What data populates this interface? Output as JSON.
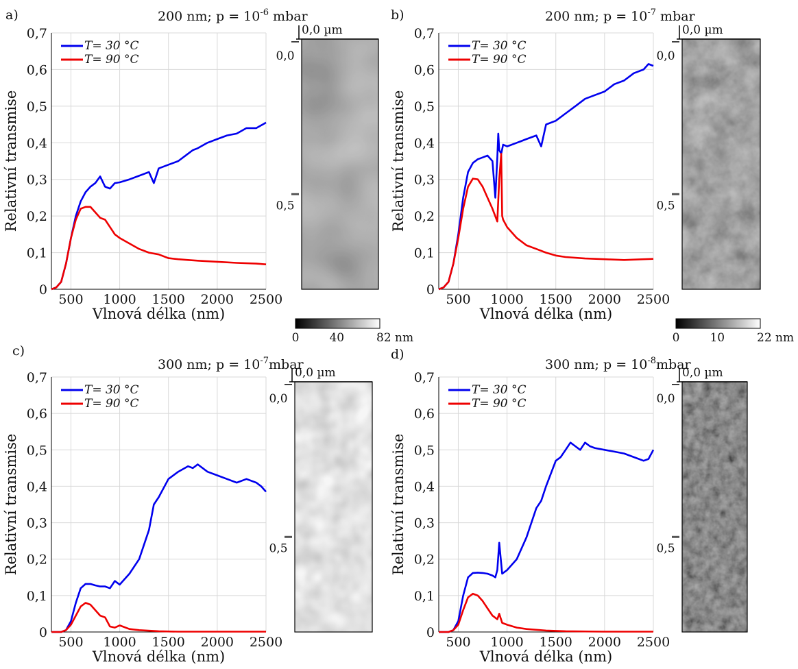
{
  "figure": {
    "xlabel": "Vlnová délka (nm)",
    "ylabel": "Relativní transmise",
    "x_ticks": [
      "500",
      "1000",
      "1500",
      "2000",
      "2500"
    ],
    "y_ticks": [
      "0",
      "0,1",
      "0,2",
      "0,3",
      "0,4",
      "0,5",
      "0,6",
      "0,7"
    ],
    "legend": [
      "T= 30 °C",
      "T= 90 °C"
    ],
    "colors": {
      "blue": "#0000ee",
      "red": "#ee0000",
      "grid": "#d8d8d8"
    },
    "afm_top_label": "0,0 µm",
    "afm_scale_labels": [
      "0,0",
      "0,5"
    ]
  },
  "panels": [
    {
      "letter": "a)",
      "title": "200 nm; p = 10^-6 mbar",
      "colorbar": {
        "ticks": [
          "0",
          "40",
          "82 nm"
        ]
      }
    },
    {
      "letter": "b)",
      "title": "200 nm; p = 10^-7 mbar",
      "colorbar": {
        "ticks": [
          "0",
          "10",
          "22 nm"
        ]
      }
    },
    {
      "letter": "c)",
      "title": "300 nm; p = 10^-7mbar"
    },
    {
      "letter": "d)",
      "title": "300 nm; p = 10^-8mbar"
    }
  ],
  "chart_data": [
    {
      "type": "line",
      "panel": "a",
      "title": "200 nm; p = 10-6 mbar",
      "xlabel": "Vlnová délka (nm)",
      "ylabel": "Relativní transmise",
      "xlim": [
        300,
        2500
      ],
      "ylim": [
        0,
        0.7
      ],
      "grid": true,
      "legend_position": "top-left",
      "series": [
        {
          "name": "T= 30 °C",
          "color": "#0000ee",
          "x": [
            300,
            350,
            400,
            450,
            500,
            550,
            600,
            650,
            700,
            750,
            800,
            850,
            900,
            950,
            1000,
            1100,
            1200,
            1300,
            1350,
            1400,
            1500,
            1600,
            1700,
            1750,
            1800,
            1900,
            2000,
            2100,
            2200,
            2300,
            2400,
            2500
          ],
          "y": [
            0.0,
            0.005,
            0.02,
            0.07,
            0.14,
            0.2,
            0.24,
            0.265,
            0.28,
            0.29,
            0.308,
            0.28,
            0.275,
            0.29,
            0.292,
            0.3,
            0.31,
            0.32,
            0.29,
            0.33,
            0.34,
            0.35,
            0.37,
            0.38,
            0.385,
            0.4,
            0.41,
            0.42,
            0.425,
            0.44,
            0.44,
            0.455
          ]
        },
        {
          "name": "T= 90 °C",
          "color": "#ee0000",
          "x": [
            300,
            350,
            400,
            450,
            500,
            550,
            600,
            650,
            700,
            750,
            800,
            850,
            900,
            950,
            1000,
            1100,
            1200,
            1300,
            1400,
            1500,
            1600,
            1700,
            1800,
            2000,
            2200,
            2400,
            2500
          ],
          "y": [
            0.0,
            0.005,
            0.02,
            0.07,
            0.14,
            0.19,
            0.22,
            0.225,
            0.225,
            0.21,
            0.195,
            0.19,
            0.17,
            0.15,
            0.14,
            0.125,
            0.11,
            0.1,
            0.095,
            0.085,
            0.082,
            0.08,
            0.078,
            0.075,
            0.072,
            0.07,
            0.068
          ]
        }
      ]
    },
    {
      "type": "line",
      "panel": "b",
      "title": "200 nm; p = 10-7 mbar",
      "xlabel": "Vlnová délka (nm)",
      "ylabel": "Relativní transmise",
      "xlim": [
        300,
        2500
      ],
      "ylim": [
        0,
        0.7
      ],
      "grid": true,
      "legend_position": "top-left",
      "series": [
        {
          "name": "T= 30 °C",
          "color": "#0000ee",
          "x": [
            300,
            350,
            400,
            450,
            500,
            550,
            600,
            650,
            700,
            750,
            800,
            850,
            880,
            900,
            910,
            920,
            940,
            960,
            1000,
            1100,
            1200,
            1300,
            1350,
            1400,
            1500,
            1600,
            1700,
            1800,
            1900,
            2000,
            2100,
            2200,
            2300,
            2400,
            2450,
            2500
          ],
          "y": [
            0.0,
            0.005,
            0.02,
            0.07,
            0.15,
            0.25,
            0.32,
            0.345,
            0.355,
            0.36,
            0.365,
            0.35,
            0.25,
            0.36,
            0.425,
            0.38,
            0.37,
            0.395,
            0.39,
            0.4,
            0.41,
            0.42,
            0.39,
            0.45,
            0.46,
            0.48,
            0.5,
            0.52,
            0.53,
            0.54,
            0.56,
            0.57,
            0.59,
            0.6,
            0.615,
            0.61
          ]
        },
        {
          "name": "T= 90 °C",
          "color": "#ee0000",
          "x": [
            300,
            350,
            400,
            450,
            500,
            550,
            600,
            650,
            700,
            750,
            800,
            850,
            900,
            920,
            940,
            950,
            960,
            1000,
            1100,
            1200,
            1300,
            1400,
            1500,
            1600,
            1800,
            2000,
            2200,
            2400,
            2500
          ],
          "y": [
            0.0,
            0.005,
            0.02,
            0.07,
            0.14,
            0.22,
            0.28,
            0.302,
            0.3,
            0.28,
            0.25,
            0.22,
            0.185,
            0.3,
            0.37,
            0.2,
            0.19,
            0.17,
            0.14,
            0.12,
            0.11,
            0.1,
            0.092,
            0.088,
            0.084,
            0.082,
            0.08,
            0.082,
            0.083
          ]
        }
      ]
    },
    {
      "type": "line",
      "panel": "c",
      "title": "300 nm; p = 10-7mbar",
      "xlabel": "Vlnová délka (nm)",
      "ylabel": "Relativní transmise",
      "xlim": [
        300,
        2500
      ],
      "ylim": [
        0,
        0.7
      ],
      "grid": true,
      "legend_position": "top-left",
      "series": [
        {
          "name": "T= 30 °C",
          "color": "#0000ee",
          "x": [
            300,
            400,
            450,
            500,
            550,
            600,
            650,
            700,
            750,
            800,
            850,
            900,
            950,
            1000,
            1100,
            1200,
            1300,
            1350,
            1400,
            1500,
            1600,
            1700,
            1750,
            1800,
            1900,
            2000,
            2100,
            2200,
            2300,
            2400,
            2450,
            2500
          ],
          "y": [
            0.0,
            0.0,
            0.005,
            0.03,
            0.08,
            0.12,
            0.132,
            0.132,
            0.128,
            0.125,
            0.125,
            0.12,
            0.14,
            0.13,
            0.16,
            0.2,
            0.28,
            0.35,
            0.37,
            0.42,
            0.44,
            0.455,
            0.45,
            0.46,
            0.44,
            0.43,
            0.42,
            0.41,
            0.42,
            0.41,
            0.4,
            0.385
          ]
        },
        {
          "name": "T= 90 °C",
          "color": "#ee0000",
          "x": [
            300,
            400,
            450,
            500,
            550,
            600,
            650,
            700,
            750,
            800,
            850,
            900,
            950,
            1000,
            1100,
            1200,
            1400,
            1600,
            2000,
            2500
          ],
          "y": [
            0.0,
            0.0,
            0.005,
            0.02,
            0.045,
            0.07,
            0.08,
            0.075,
            0.06,
            0.045,
            0.04,
            0.015,
            0.012,
            0.018,
            0.008,
            0.005,
            0.002,
            0.001,
            0.001,
            0.001
          ]
        }
      ]
    },
    {
      "type": "line",
      "panel": "d",
      "title": "300 nm; p = 10-8mbar",
      "xlabel": "Vlnová délka (nm)",
      "ylabel": "Relativní transmise",
      "xlim": [
        300,
        2500
      ],
      "ylim": [
        0,
        0.7
      ],
      "grid": true,
      "legend_position": "top-left",
      "series": [
        {
          "name": "T= 30 °C",
          "color": "#0000ee",
          "x": [
            300,
            400,
            450,
            500,
            550,
            600,
            650,
            700,
            750,
            800,
            850,
            880,
            900,
            920,
            950,
            1000,
            1100,
            1200,
            1300,
            1350,
            1400,
            1500,
            1550,
            1600,
            1650,
            1700,
            1750,
            1800,
            1850,
            1900,
            2000,
            2100,
            2200,
            2300,
            2400,
            2450,
            2500
          ],
          "y": [
            0.0,
            0.0,
            0.005,
            0.03,
            0.1,
            0.15,
            0.162,
            0.163,
            0.162,
            0.16,
            0.155,
            0.15,
            0.17,
            0.245,
            0.16,
            0.17,
            0.2,
            0.26,
            0.34,
            0.36,
            0.4,
            0.47,
            0.48,
            0.5,
            0.52,
            0.51,
            0.5,
            0.52,
            0.51,
            0.505,
            0.5,
            0.495,
            0.49,
            0.48,
            0.47,
            0.475,
            0.5
          ]
        },
        {
          "name": "T= 90 °C",
          "color": "#ee0000",
          "x": [
            300,
            400,
            450,
            500,
            550,
            600,
            650,
            700,
            750,
            800,
            850,
            900,
            920,
            950,
            1000,
            1100,
            1200,
            1400,
            1600,
            2000,
            2500
          ],
          "y": [
            0.0,
            0.0,
            0.005,
            0.02,
            0.06,
            0.095,
            0.105,
            0.1,
            0.085,
            0.065,
            0.045,
            0.035,
            0.05,
            0.025,
            0.02,
            0.012,
            0.008,
            0.004,
            0.002,
            0.001,
            0.001
          ]
        }
      ]
    }
  ]
}
